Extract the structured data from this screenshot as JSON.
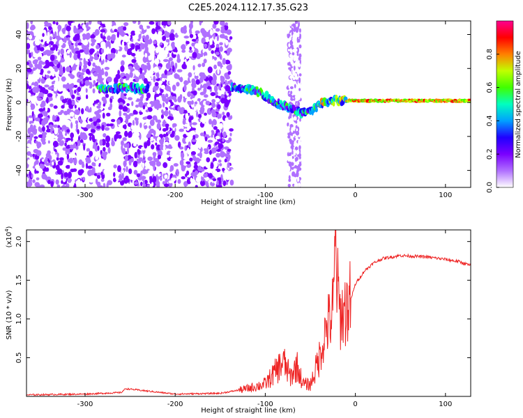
{
  "title": "C2E5.2024.112.17.35.G23",
  "chart_data": [
    {
      "type": "heatmap",
      "xlabel": "Height of straight line (km)",
      "ylabel": "Frequency (Hz)",
      "xlim": [
        -365,
        128
      ],
      "ylim": [
        -50,
        48
      ],
      "x_ticks": [
        -300,
        -200,
        -100,
        0,
        100
      ],
      "y_ticks": [
        -40,
        -20,
        0,
        20,
        40
      ],
      "colorbar": {
        "label": "Normalized spectral amplitude",
        "range": [
          0,
          1
        ],
        "ticks": [
          "0.0",
          "0.2",
          "0.4",
          "0.6",
          "0.8"
        ],
        "colormap": [
          "#ffffff",
          "#b070ff",
          "#7a00ff",
          "#2000ff",
          "#00a0ff",
          "#00ffc0",
          "#40ff00",
          "#c0ff00",
          "#ff8000",
          "#ff0000",
          "#ff0090"
        ]
      },
      "signal_track": [
        {
          "x": -282,
          "y": 8
        },
        {
          "x": -270,
          "y": 8
        },
        {
          "x": -255,
          "y": 9
        },
        {
          "x": -240,
          "y": 8
        },
        {
          "x": -137,
          "y": 9
        },
        {
          "x": -120,
          "y": 8
        },
        {
          "x": -105,
          "y": 6
        },
        {
          "x": -90,
          "y": 0
        },
        {
          "x": -75,
          "y": -3
        },
        {
          "x": -60,
          "y": -6
        },
        {
          "x": -48,
          "y": -5
        },
        {
          "x": -38,
          "y": 0
        },
        {
          "x": -20,
          "y": 1
        },
        {
          "x": 0,
          "y": 1
        },
        {
          "x": 50,
          "y": 1
        },
        {
          "x": 100,
          "y": 1
        },
        {
          "x": 128,
          "y": 1
        }
      ]
    },
    {
      "type": "line",
      "xlabel": "Height of straight line (km)",
      "ylabel": "SNR (10 * v/v)",
      "y_multiplier": "(x10",
      "y_multiplier_exp": "4",
      "y_multiplier_close": ")",
      "xlim": [
        -365,
        128
      ],
      "ylim": [
        0,
        2.15
      ],
      "x_ticks": [
        -300,
        -200,
        -100,
        0,
        100
      ],
      "y_ticks": [
        0.5,
        1.0,
        1.5,
        2.0
      ],
      "y_tick_labels": [
        "0.5",
        "1.0",
        "1.5",
        "2.0"
      ],
      "series": [
        {
          "color": "#ee2222",
          "x": [
            -365,
            -300,
            -260,
            -255,
            -200,
            -150,
            -120,
            -100,
            -90,
            -80,
            -72,
            -65,
            -58,
            -50,
            -44,
            -38,
            -32,
            -27,
            -24,
            -22,
            -20,
            -17,
            -12,
            -5,
            0,
            10,
            20,
            30,
            50,
            80,
            100,
            115,
            128
          ],
          "y": [
            0.02,
            0.03,
            0.05,
            0.1,
            0.03,
            0.04,
            0.1,
            0.16,
            0.3,
            0.45,
            0.25,
            0.4,
            0.16,
            0.15,
            0.35,
            0.6,
            0.9,
            1.0,
            1.2,
            2.1,
            1.4,
            1.05,
            1.1,
            1.25,
            1.45,
            1.62,
            1.72,
            1.78,
            1.82,
            1.8,
            1.77,
            1.74,
            1.69
          ]
        }
      ]
    }
  ]
}
